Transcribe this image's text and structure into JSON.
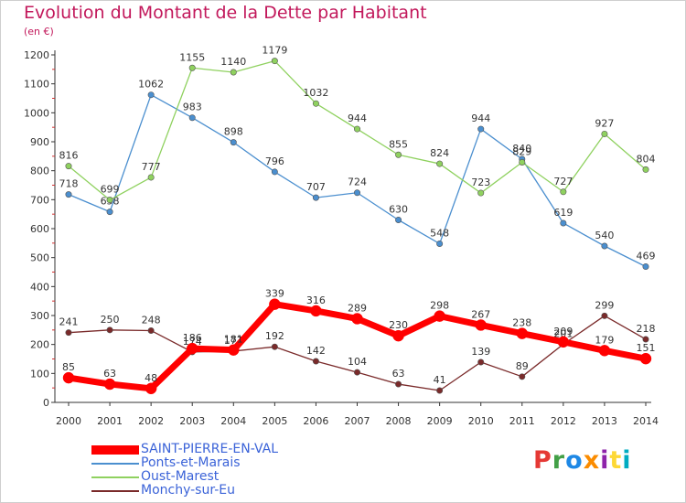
{
  "chart_data": {
    "type": "line",
    "title": "Evolution du Montant de la Dette par Habitant",
    "subtitle": "(en €)",
    "xlabel": "",
    "ylabel": "",
    "x": [
      "2000",
      "2001",
      "2002",
      "2003",
      "2004",
      "2005",
      "2006",
      "2007",
      "2008",
      "2009",
      "2010",
      "2011",
      "2012",
      "2013",
      "2014"
    ],
    "yticks": [
      0,
      100,
      200,
      300,
      400,
      500,
      600,
      700,
      800,
      900,
      1000,
      1100,
      1200
    ],
    "ylim": [
      0,
      1200
    ],
    "grid": false,
    "legend_position": "bottom-left",
    "series": [
      {
        "name": "Ponts-et-Marais",
        "color": "#4b8fcf",
        "values": [
          718,
          658,
          1062,
          983,
          898,
          796,
          707,
          724,
          630,
          548,
          944,
          840,
          619,
          540,
          469
        ]
      },
      {
        "name": "Oust-Marest",
        "color": "#8fd15f",
        "values": [
          816,
          699,
          777,
          1155,
          1140,
          1179,
          1032,
          944,
          855,
          824,
          723,
          829,
          727,
          927,
          804
        ]
      },
      {
        "name": "Monchy-sur-Eu",
        "color": "#7a2a2a",
        "values": [
          241,
          250,
          248,
          174,
          177,
          192,
          142,
          104,
          63,
          41,
          139,
          89,
          201,
          299,
          218
        ]
      },
      {
        "name": "SAINT-PIERRE-EN-VAL",
        "color": "#ff0000",
        "values": [
          85,
          63,
          48,
          186,
          181,
          339,
          316,
          289,
          230,
          298,
          267,
          238,
          209,
          179,
          151
        ]
      }
    ]
  },
  "legend": {
    "items": [
      {
        "label": "SAINT-PIERRE-EN-VAL",
        "color": "#ff0000"
      },
      {
        "label": "Ponts-et-Marais",
        "color": "#4b8fcf"
      },
      {
        "label": "Oust-Marest",
        "color": "#8fd15f"
      },
      {
        "label": "Monchy-sur-Eu",
        "color": "#7a2a2a"
      }
    ]
  },
  "logo": {
    "letters": [
      "P",
      "r",
      "o",
      "x",
      "i",
      "t",
      "i"
    ],
    "colors": [
      "#e53935",
      "#43a047",
      "#1e88e5",
      "#fb8c00",
      "#8e24aa",
      "#fdd835",
      "#00acc1"
    ]
  }
}
